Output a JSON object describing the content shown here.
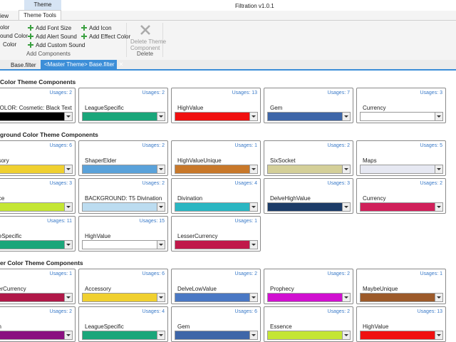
{
  "window": {
    "title": "Filtration v1.0.1"
  },
  "ribbon": {
    "view_tab": "iew",
    "context_header": "Theme",
    "active_tab": "Theme Tools",
    "left_items": [
      "olor",
      "ound Color",
      "Color"
    ],
    "add_items": [
      "Add Font Size",
      "Add Alert Sound",
      "Add Custom Sound",
      "Add Icon",
      "Add Effect Color"
    ],
    "add_group": "Add Components",
    "delete_item": [
      "Delete Theme",
      "Component"
    ],
    "delete_group": "Delete"
  },
  "doc_tabs": [
    "Base.filter",
    "<Master Theme> Base.filter"
  ],
  "sections": [
    {
      "title": "Color Theme Components",
      "cards": [
        {
          "usages": "Usages: 2",
          "name": "TCOLOR: Cosmetic: Black Text",
          "color": "#000000"
        },
        {
          "usages": "Usages: 2",
          "name": "LeagueSpecific",
          "color": "#1aa67a"
        },
        {
          "usages": "Usages: 13",
          "name": "HighValue",
          "color": "#f01010"
        },
        {
          "usages": "Usages: 7",
          "name": "Gem",
          "color": "#3e66a8"
        },
        {
          "usages": "Usages: 3",
          "name": "Currency",
          "color": "#ffffff"
        }
      ]
    },
    {
      "title": "ground Color Theme Components",
      "cards": [
        {
          "usages": "Usages: 6",
          "name": "essory",
          "color": "#f0d030"
        },
        {
          "usages": "Usages: 2",
          "name": "ShaperElder",
          "color": "#5aa2da"
        },
        {
          "usages": "Usages: 1",
          "name": "HighValueUnique",
          "color": "#c8782a"
        },
        {
          "usages": "Usages: 2",
          "name": "SixSocket",
          "color": "#d4cf98"
        },
        {
          "usages": "Usages: 5",
          "name": "Maps",
          "color": "#e6e8f2"
        },
        {
          "usages": "Usages: 3",
          "name": "ence",
          "color": "#c4e634"
        },
        {
          "usages": "Usages: 2",
          "name": "BACKGROUND: T5 Divination",
          "color": "#bcdcf0"
        },
        {
          "usages": "Usages: 4",
          "name": "Divination",
          "color": "#2ab6c2"
        },
        {
          "usages": "Usages: 3",
          "name": "DelveHighValue",
          "color": "#1c3c68"
        },
        {
          "usages": "Usages: 2",
          "name": "Currency",
          "color": "#d0205a"
        },
        {
          "usages": "Usages: 11",
          "name": "gueSpecific",
          "color": "#1aa67a"
        },
        {
          "usages": "Usages: 15",
          "name": "HighValue",
          "color": "#ffffff"
        },
        {
          "usages": "Usages: 1",
          "name": "LesserCurrency",
          "color": "#c0184a"
        }
      ]
    },
    {
      "title": "er Color Theme Components",
      "cards": [
        {
          "usages": "Usages: 1",
          "name": "sserCurrency",
          "color": "#b01848"
        },
        {
          "usages": "Usages: 6",
          "name": "Accessory",
          "color": "#f0d030"
        },
        {
          "usages": "Usages: 2",
          "name": "DelveLowValue",
          "color": "#4a78c4"
        },
        {
          "usages": "Usages: 2",
          "name": "Prophecy",
          "color": "#d010d0"
        },
        {
          "usages": "Usages: 1",
          "name": "MaybeUnique",
          "color": "#9c5a2a"
        },
        {
          "usages": "Usages: 2",
          "name": "ach",
          "color": "#8a1080"
        },
        {
          "usages": "Usages: 4",
          "name": "LeagueSpecific",
          "color": "#1aa67a"
        },
        {
          "usages": "Usages: 6",
          "name": "Gem",
          "color": "#3e66a8"
        },
        {
          "usages": "Usages: 2",
          "name": "Essence",
          "color": "#c4e634"
        },
        {
          "usages": "Usages: 13",
          "name": "HighValue",
          "color": "#f01010"
        }
      ]
    }
  ]
}
